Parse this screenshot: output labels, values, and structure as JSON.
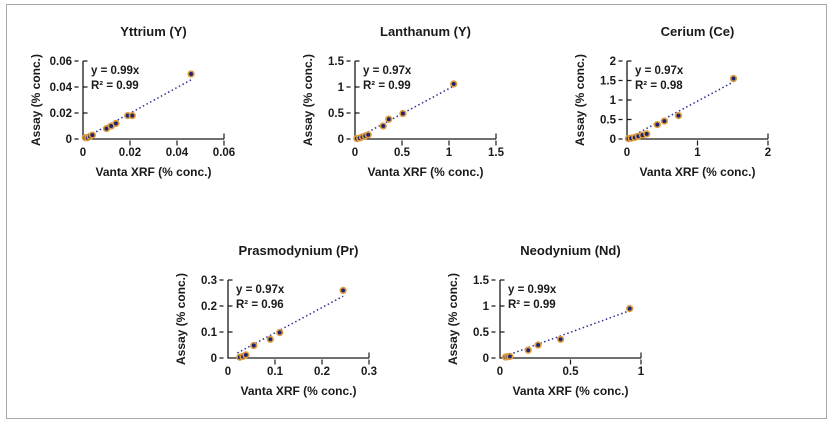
{
  "figure": {
    "background": "#ffffff",
    "border_color": "#a8a8a8"
  },
  "style": {
    "marker_fill": "#1a2374",
    "marker_ring": "#dd9b3f",
    "trend_color": "#2b2f90",
    "axis_color": "#1a1a1a",
    "text_color": "#1a1a1a"
  },
  "chart_data": [
    {
      "id": "yttrium",
      "type": "scatter",
      "title": "Yttrium (Y)",
      "annotation": {
        "equation": "y = 0.99x",
        "r_squared": "R² = 0.99"
      },
      "xlabel": "Vanta XRF (% conc.)",
      "ylabel": "Assay (% conc.)",
      "xlim": [
        0,
        0.06
      ],
      "ylim": [
        0,
        0.06
      ],
      "xticks": [
        0,
        0.02,
        0.04,
        0.06
      ],
      "xtick_labels": [
        "0",
        "0.02",
        "0.04",
        "0.06"
      ],
      "yticks": [
        0,
        0.02,
        0.04,
        0.06
      ],
      "ytick_labels": [
        "0",
        "0.02",
        "0.04",
        "0.06"
      ],
      "slope": 0.99,
      "trendline": {
        "style": "dotted",
        "x_start": 0.001,
        "x_end": 0.046
      },
      "points": [
        [
          0.001,
          0.001
        ],
        [
          0.002,
          0.001
        ],
        [
          0.003,
          0.002
        ],
        [
          0.004,
          0.003
        ],
        [
          0.01,
          0.008
        ],
        [
          0.012,
          0.01
        ],
        [
          0.014,
          0.012
        ],
        [
          0.019,
          0.018
        ],
        [
          0.021,
          0.018
        ],
        [
          0.046,
          0.05
        ]
      ]
    },
    {
      "id": "lanthanum",
      "type": "scatter",
      "title": "Lanthanum (Y)",
      "annotation": {
        "equation": "y = 0.97x",
        "r_squared": "R² = 0.99"
      },
      "xlabel": "Vanta XRF (% conc.)",
      "ylabel": "Assay (% conc.)",
      "xlim": [
        0,
        1.5
      ],
      "ylim": [
        0,
        1.5
      ],
      "xticks": [
        0,
        0.5,
        1,
        1.5
      ],
      "xtick_labels": [
        "0",
        "0.5",
        "1",
        "1.5"
      ],
      "yticks": [
        0,
        0.5,
        1,
        1.5
      ],
      "ytick_labels": [
        "0",
        "0.5",
        "1",
        "1.5"
      ],
      "slope": 0.97,
      "trendline": {
        "style": "dotted",
        "x_start": 0.02,
        "x_end": 1.05
      },
      "points": [
        [
          0.02,
          0.01
        ],
        [
          0.05,
          0.02
        ],
        [
          0.08,
          0.04
        ],
        [
          0.11,
          0.06
        ],
        [
          0.14,
          0.08
        ],
        [
          0.3,
          0.25
        ],
        [
          0.36,
          0.38
        ],
        [
          0.51,
          0.49
        ],
        [
          1.05,
          1.06
        ]
      ]
    },
    {
      "id": "cerium",
      "type": "scatter",
      "title": "Cerium (Ce)",
      "annotation": {
        "equation": "y = 0.97x",
        "r_squared": "R² = 0.98"
      },
      "xlabel": "Vanta XRF (% conc.)",
      "ylabel": "Assay (% conc.)",
      "xlim": [
        0,
        2
      ],
      "ylim": [
        0,
        2
      ],
      "xticks": [
        0,
        1,
        2
      ],
      "xtick_labels": [
        "0",
        "1",
        "2"
      ],
      "yticks": [
        0,
        0.5,
        1,
        1.5,
        2
      ],
      "ytick_labels": [
        "0",
        "0.5",
        "1",
        "1.5",
        "2"
      ],
      "slope": 0.97,
      "trendline": {
        "style": "dotted",
        "x_start": 0.02,
        "x_end": 1.51
      },
      "points": [
        [
          0.02,
          0.01
        ],
        [
          0.06,
          0.02
        ],
        [
          0.11,
          0.04
        ],
        [
          0.16,
          0.07
        ],
        [
          0.22,
          0.1
        ],
        [
          0.28,
          0.13
        ],
        [
          0.43,
          0.37
        ],
        [
          0.53,
          0.46
        ],
        [
          0.73,
          0.6
        ],
        [
          1.51,
          1.55
        ]
      ]
    },
    {
      "id": "prasmodynium",
      "type": "scatter",
      "title": "Prasmodynium (Pr)",
      "annotation": {
        "equation": "y = 0.97x",
        "r_squared": "R² = 0.96"
      },
      "xlabel": "Vanta XRF (% conc.)",
      "ylabel": "Assay (% conc.)",
      "xlim": [
        0,
        0.3
      ],
      "ylim": [
        0,
        0.3
      ],
      "xticks": [
        0,
        0.1,
        0.2,
        0.3
      ],
      "xtick_labels": [
        "0",
        "0.1",
        "0.2",
        "0.3"
      ],
      "yticks": [
        0,
        0.1,
        0.2,
        0.3
      ],
      "ytick_labels": [
        "0",
        "0.1",
        "0.2",
        "0.3"
      ],
      "slope": 0.97,
      "trendline": {
        "style": "dotted",
        "x_start": 0.02,
        "x_end": 0.245
      },
      "points": [
        [
          0.025,
          0.003
        ],
        [
          0.032,
          0.006
        ],
        [
          0.038,
          0.012
        ],
        [
          0.055,
          0.048
        ],
        [
          0.09,
          0.072
        ],
        [
          0.11,
          0.098
        ],
        [
          0.245,
          0.26
        ]
      ]
    },
    {
      "id": "neodynium",
      "type": "scatter",
      "title": "Neodynium (Nd)",
      "annotation": {
        "equation": "y = 0.99x",
        "r_squared": "R² = 0.99"
      },
      "xlabel": "Vanta XRF (% conc.)",
      "ylabel": "Assay (% conc.)",
      "xlim": [
        0,
        1
      ],
      "ylim": [
        0,
        1.5
      ],
      "xticks": [
        0,
        0.5,
        1
      ],
      "xtick_labels": [
        "0",
        "0.5",
        "1"
      ],
      "yticks": [
        0,
        0.5,
        1,
        1.5
      ],
      "ytick_labels": [
        "0",
        "0.5",
        "1",
        "1.5"
      ],
      "slope": 0.99,
      "trendline": {
        "style": "dotted",
        "x_start": 0.04,
        "x_end": 0.92
      },
      "points": [
        [
          0.04,
          0.02
        ],
        [
          0.055,
          0.025
        ],
        [
          0.07,
          0.03
        ],
        [
          0.2,
          0.15
        ],
        [
          0.27,
          0.25
        ],
        [
          0.43,
          0.36
        ],
        [
          0.92,
          0.95
        ]
      ]
    }
  ]
}
